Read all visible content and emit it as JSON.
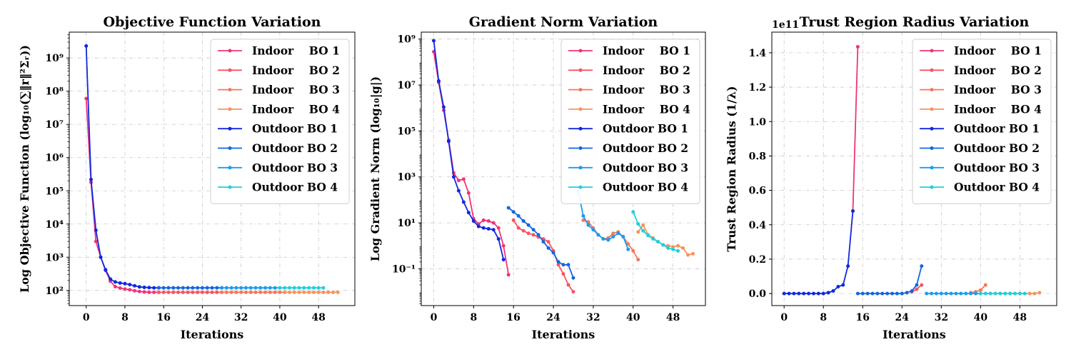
{
  "chart_data": [
    {
      "type": "line",
      "title": "Objective Function Variation",
      "xlabel": "Iterations",
      "ylabel": "Log Objective Function (log₁₀(∑‖r‖²Σᵣ))",
      "yscale": "log",
      "xlim": [
        -3.5,
        55.5
      ],
      "ylim": [
        35,
        6000000000
      ],
      "xticks": [
        0,
        8,
        16,
        24,
        32,
        40,
        48
      ],
      "yticks": [
        100,
        1000,
        10000,
        100000,
        1000000,
        10000000,
        100000000,
        1000000000
      ],
      "yticklabels": [
        "10²",
        "10³",
        "10⁴",
        "10⁵",
        "10⁶",
        "10⁷",
        "10⁸",
        "10⁹"
      ],
      "grid": true,
      "legend": "top-right",
      "series": [
        {
          "name": "Indoor    BO 1",
          "color": "#f0347a",
          "x": [
            0,
            1,
            2,
            3,
            4,
            5,
            6,
            7,
            8,
            9,
            10,
            11,
            12,
            13,
            14,
            15
          ],
          "y": [
            60000000,
            180000,
            3000,
            1000,
            400,
            190,
            130,
            118,
            110,
            105,
            98,
            93,
            90,
            88,
            88,
            88
          ]
        },
        {
          "name": "Indoor    BO 2",
          "color": "#f55561",
          "x": [
            15,
            16,
            17,
            18,
            19,
            20,
            21,
            22,
            23,
            24,
            25,
            26,
            27,
            28
          ],
          "y": [
            88,
            88,
            88,
            88,
            88,
            88,
            88,
            88,
            88,
            88,
            88,
            88,
            88,
            88
          ]
        },
        {
          "name": "Indoor    BO 3",
          "color": "#f7765a",
          "x": [
            28,
            29,
            30,
            31,
            32,
            33,
            34,
            35,
            36,
            37,
            38,
            39,
            40,
            41
          ],
          "y": [
            88,
            88,
            88,
            88,
            88,
            88,
            88,
            88,
            88,
            88,
            88,
            88,
            88,
            88
          ]
        },
        {
          "name": "Indoor    BO 4",
          "color": "#f8935e",
          "x": [
            41,
            42,
            43,
            44,
            45,
            46,
            47,
            48,
            49,
            50,
            51,
            52
          ],
          "y": [
            88,
            88,
            88,
            88,
            88,
            88,
            88,
            88,
            88,
            88,
            88,
            88
          ]
        },
        {
          "name": "Outdoor BO 1",
          "color": "#1128e0",
          "x": [
            0,
            1,
            2,
            3,
            4,
            5,
            6,
            7,
            8,
            9,
            10,
            11,
            12,
            13,
            14,
            15
          ],
          "y": [
            2300000000,
            220000,
            6500,
            1000,
            420,
            220,
            180,
            168,
            160,
            150,
            138,
            128,
            124,
            122,
            120,
            120
          ]
        },
        {
          "name": "Outdoor BO 2",
          "color": "#1466e0",
          "x": [
            15,
            16,
            17,
            18,
            19,
            20,
            21,
            22,
            23,
            24,
            25,
            26,
            27,
            28
          ],
          "y": [
            120,
            120,
            120,
            120,
            120,
            120,
            120,
            120,
            120,
            120,
            120,
            120,
            120,
            120
          ]
        },
        {
          "name": "Outdoor BO 3",
          "color": "#1a9cf2",
          "x": [
            28,
            29,
            30,
            31,
            32,
            33,
            34,
            35,
            36,
            37,
            38,
            39,
            40
          ],
          "y": [
            120,
            120,
            120,
            120,
            120,
            120,
            120,
            120,
            120,
            120,
            120,
            120,
            120
          ]
        },
        {
          "name": "Outdoor BO 4",
          "color": "#1fd0dd",
          "x": [
            40,
            41,
            42,
            43,
            44,
            45,
            46,
            47,
            48,
            49
          ],
          "y": [
            120,
            120,
            120,
            120,
            120,
            120,
            120,
            120,
            120,
            120
          ]
        }
      ]
    },
    {
      "type": "line",
      "title": "Gradient Norm Variation",
      "xlabel": "Iterations",
      "ylabel": "Log Gradient Norm (log₁₀|g|)",
      "yscale": "log",
      "xlim": [
        -2.5,
        54.5
      ],
      "ylim": [
        0.0025,
        2000000000
      ],
      "xticks": [
        0,
        8,
        16,
        24,
        32,
        40,
        48
      ],
      "yticks": [
        0.1,
        10,
        1000,
        100000,
        10000000,
        1000000000
      ],
      "yticklabels": [
        "10⁻¹",
        "10¹",
        "10³",
        "10⁵",
        "10⁷",
        "10⁹"
      ],
      "grid": true,
      "legend": "top-right",
      "series": [
        {
          "name": "Indoor    BO 1",
          "color": "#f0347a",
          "x": [
            0,
            1,
            2,
            3,
            4,
            5,
            6,
            7,
            8,
            9,
            10,
            11,
            12,
            13,
            14,
            15
          ],
          "y": [
            280000000,
            13000000,
            800000,
            40000,
            1500,
            700,
            800,
            200,
            15,
            9,
            13,
            12,
            10,
            6,
            1,
            0.055
          ]
        },
        {
          "name": "Indoor    BO 2",
          "color": "#f55561",
          "x": [
            16,
            17,
            18,
            19,
            20,
            21,
            22,
            23,
            24,
            25,
            26,
            27,
            28
          ],
          "y": [
            13,
            6,
            4.5,
            3.5,
            3,
            2.4,
            2,
            1.5,
            0.6,
            0.15,
            0.06,
            0.02,
            0.01
          ]
        },
        {
          "name": "Indoor    BO 3",
          "color": "#f7765a",
          "x": [
            30,
            31,
            32,
            33,
            34,
            35,
            36,
            37,
            38,
            39,
            40,
            41
          ],
          "y": [
            13,
            11,
            6,
            3,
            2,
            2.2,
            3.5,
            4,
            2.5,
            1.2,
            0.6,
            0.25
          ]
        },
        {
          "name": "Indoor    BO 4",
          "color": "#f8935e",
          "x": [
            41,
            42,
            43,
            44,
            45,
            46,
            47,
            48,
            49,
            50,
            51,
            52
          ],
          "y": [
            4,
            8,
            3,
            2.2,
            1.5,
            1.1,
            1,
            0.9,
            1,
            0.8,
            0.4,
            0.45
          ]
        },
        {
          "name": "Outdoor BO 1",
          "color": "#1128e0",
          "x": [
            0,
            1,
            2,
            3,
            4,
            5,
            6,
            7,
            8,
            9,
            10,
            11,
            12,
            13,
            14
          ],
          "y": [
            850000000,
            15000000,
            1100000,
            35000,
            1000,
            250,
            80,
            28,
            12,
            7,
            6,
            5.5,
            5,
            2,
            0.25
          ]
        },
        {
          "name": "Outdoor BO 2",
          "color": "#1466e0",
          "x": [
            15,
            16,
            17,
            18,
            19,
            20,
            21,
            22,
            23,
            24,
            25,
            26,
            27,
            28
          ],
          "y": [
            45,
            30,
            20,
            12,
            8,
            5,
            3,
            1.5,
            0.8,
            0.5,
            0.2,
            0.15,
            0.15,
            0.04
          ]
        },
        {
          "name": "Outdoor BO 3",
          "color": "#1a9cf2",
          "x": [
            29,
            30,
            31,
            32,
            33,
            34,
            35,
            36,
            37,
            38,
            39
          ],
          "y": [
            230,
            20,
            8,
            5,
            3,
            2,
            1.8,
            2.5,
            3.5,
            2.5,
            0.7
          ]
        },
        {
          "name": "Outdoor BO 4",
          "color": "#1fd0dd",
          "x": [
            40,
            41,
            42,
            43,
            44,
            45,
            46,
            47,
            48,
            49
          ],
          "y": [
            30,
            9,
            4.5,
            2.8,
            2,
            1.5,
            1.1,
            0.8,
            0.7,
            0.6
          ]
        }
      ]
    },
    {
      "type": "line",
      "title": "Trust Region Radius Variation",
      "offset_label": "1e11",
      "xlabel": "Iterations",
      "ylabel": "Trust Region Radius (1/λ)",
      "yscale": "linear",
      "xlim": [
        -2.5,
        55.5
      ],
      "ylim": [
        -0.07,
        1.52
      ],
      "xticks": [
        0,
        8,
        16,
        24,
        32,
        40,
        48
      ],
      "yticks": [
        0,
        0.2,
        0.4,
        0.6,
        0.8,
        1.0,
        1.2,
        1.4
      ],
      "yticklabels": [
        "0.0",
        "0.2",
        "0.4",
        "0.6",
        "0.8",
        "1.0",
        "1.2",
        "1.4"
      ],
      "grid": true,
      "legend": "top-right",
      "series": [
        {
          "name": "Indoor    BO 1",
          "color": "#f0347a",
          "x": [
            14,
            15
          ],
          "y": [
            0.48,
            1.435
          ]
        },
        {
          "name": "Indoor    BO 2",
          "color": "#f55561",
          "x": [
            26,
            27,
            28
          ],
          "y": [
            0.01,
            0.025,
            0.05
          ]
        },
        {
          "name": "Indoor    BO 3",
          "color": "#f7765a",
          "x": [
            38,
            39,
            40,
            41
          ],
          "y": [
            0.005,
            0.01,
            0.02,
            0.05
          ]
        },
        {
          "name": "Indoor    BO 4",
          "color": "#f8935e",
          "x": [
            41,
            42,
            43,
            44,
            45,
            46,
            47,
            48,
            49,
            50,
            51,
            52
          ],
          "y": [
            0,
            0,
            0,
            0,
            0,
            0,
            0,
            0,
            0,
            0,
            0,
            0.005
          ]
        },
        {
          "name": "Outdoor BO 1",
          "color": "#1128e0",
          "x": [
            0,
            1,
            2,
            3,
            4,
            5,
            6,
            7,
            8,
            9,
            10,
            11,
            12,
            13,
            14
          ],
          "y": [
            0,
            0,
            0,
            0,
            0,
            0,
            0,
            0,
            0,
            0.005,
            0.015,
            0.04,
            0.05,
            0.16,
            0.48
          ]
        },
        {
          "name": "Outdoor BO 2",
          "color": "#1466e0",
          "x": [
            15,
            16,
            17,
            18,
            19,
            20,
            21,
            22,
            23,
            24,
            25,
            26,
            27,
            28
          ],
          "y": [
            0,
            0,
            0,
            0,
            0,
            0,
            0,
            0,
            0,
            0,
            0.005,
            0.015,
            0.05,
            0.16
          ]
        },
        {
          "name": "Outdoor BO 3",
          "color": "#1a9cf2",
          "x": [
            29,
            30,
            31,
            32,
            33,
            34,
            35,
            36,
            37,
            38,
            39,
            40
          ],
          "y": [
            0,
            0,
            0,
            0,
            0,
            0,
            0,
            0,
            0,
            0,
            0,
            0
          ]
        },
        {
          "name": "Outdoor BO 4",
          "color": "#1fd0dd",
          "x": [
            40,
            41,
            42,
            43,
            44,
            45,
            46,
            47,
            48,
            49
          ],
          "y": [
            0,
            0,
            0,
            0,
            0,
            0,
            0,
            0,
            0,
            0
          ]
        }
      ]
    }
  ]
}
